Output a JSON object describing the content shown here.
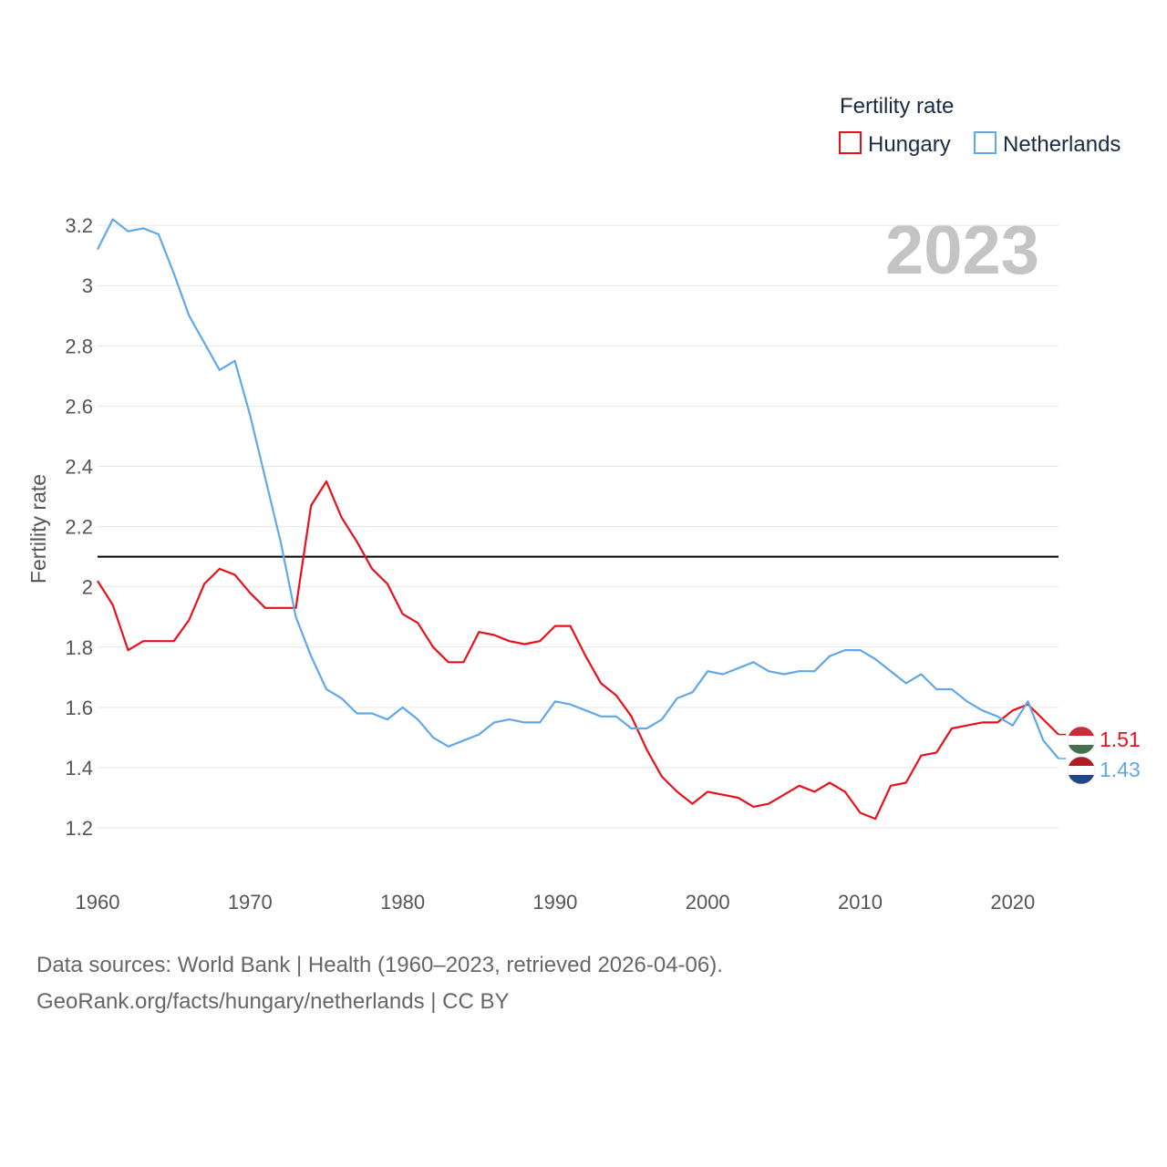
{
  "chart_data": {
    "type": "line",
    "ylabel": "Fertility rate",
    "xlabel": "",
    "legend_title": "Fertility rate",
    "legend_position": "top-right",
    "year_label": "2023",
    "xlim": [
      1960,
      2023
    ],
    "ylim": [
      1.07,
      3.27
    ],
    "x_ticks": [
      1960,
      1970,
      1980,
      1990,
      2000,
      2010,
      2020
    ],
    "x_tick_labels": [
      "1960",
      "1970",
      "1980",
      "1990",
      "2000",
      "2010",
      "2020"
    ],
    "y_ticks": [
      1.2,
      1.4,
      1.6,
      1.8,
      2.0,
      2.2,
      2.4,
      2.6,
      2.8,
      3.0,
      3.2
    ],
    "y_tick_labels": [
      "1.2",
      "1.4",
      "1.6",
      "1.8",
      "2",
      "2.2",
      "2.4",
      "2.6",
      "2.8",
      "3",
      "3.2"
    ],
    "grid": true,
    "reference_line": {
      "value": 2.1,
      "color": "#000000"
    },
    "x": [
      1960,
      1961,
      1962,
      1963,
      1964,
      1965,
      1966,
      1967,
      1968,
      1969,
      1970,
      1971,
      1972,
      1973,
      1974,
      1975,
      1976,
      1977,
      1978,
      1979,
      1980,
      1981,
      1982,
      1983,
      1984,
      1985,
      1986,
      1987,
      1988,
      1989,
      1990,
      1991,
      1992,
      1993,
      1994,
      1995,
      1996,
      1997,
      1998,
      1999,
      2000,
      2001,
      2002,
      2003,
      2004,
      2005,
      2006,
      2007,
      2008,
      2009,
      2010,
      2011,
      2012,
      2013,
      2014,
      2015,
      2016,
      2017,
      2018,
      2019,
      2020,
      2021,
      2022,
      2023
    ],
    "series": [
      {
        "name": "Hungary",
        "color": "#e8111b",
        "end_label": "1.51",
        "values": [
          2.02,
          1.94,
          1.79,
          1.82,
          1.82,
          1.82,
          1.89,
          2.01,
          2.06,
          2.04,
          1.98,
          1.93,
          1.93,
          1.93,
          2.27,
          2.35,
          2.23,
          2.15,
          2.06,
          2.01,
          1.91,
          1.88,
          1.8,
          1.75,
          1.75,
          1.85,
          1.84,
          1.82,
          1.81,
          1.82,
          1.87,
          1.87,
          1.77,
          1.68,
          1.64,
          1.57,
          1.46,
          1.37,
          1.32,
          1.28,
          1.32,
          1.31,
          1.3,
          1.27,
          1.28,
          1.31,
          1.34,
          1.32,
          1.35,
          1.32,
          1.25,
          1.23,
          1.34,
          1.35,
          1.44,
          1.45,
          1.53,
          1.54,
          1.55,
          1.55,
          1.59,
          1.61,
          1.56,
          1.51
        ]
      },
      {
        "name": "Netherlands",
        "color": "#61a8e8",
        "end_label": "1.43",
        "values": [
          3.12,
          3.22,
          3.18,
          3.19,
          3.17,
          3.04,
          2.9,
          2.81,
          2.72,
          2.75,
          2.57,
          2.36,
          2.15,
          1.9,
          1.77,
          1.66,
          1.63,
          1.58,
          1.58,
          1.56,
          1.6,
          1.56,
          1.5,
          1.47,
          1.49,
          1.51,
          1.55,
          1.56,
          1.55,
          1.55,
          1.62,
          1.61,
          1.59,
          1.57,
          1.57,
          1.53,
          1.53,
          1.56,
          1.63,
          1.65,
          1.72,
          1.71,
          1.73,
          1.75,
          1.72,
          1.71,
          1.72,
          1.72,
          1.77,
          1.79,
          1.79,
          1.76,
          1.72,
          1.68,
          1.71,
          1.66,
          1.66,
          1.62,
          1.59,
          1.57,
          1.54,
          1.62,
          1.49,
          1.43
        ]
      }
    ]
  },
  "footer": {
    "source_line": "Data sources: World Bank | Health (1960–2023, retrieved 2026-04-06).",
    "credit_line": "GeoRank.org/facts/hungary/netherlands | CC BY"
  }
}
